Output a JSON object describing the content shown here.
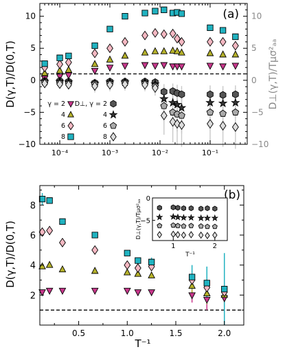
{
  "chart_data": [
    {
      "type": "scatter",
      "panel_label": "(a)",
      "xscale": "log",
      "xlim": [
        4e-05,
        0.55
      ],
      "ylim": [
        -10,
        12
      ],
      "ylabel": "D(γ,T)/D(0,T)",
      "ylabel_right": "D⊥(γ,T)/Tμσ²ₐₐ",
      "x_ticks": [
        0.0001,
        0.001,
        0.01,
        0.1
      ],
      "x_tick_labels": [
        "10⁻⁴",
        "10⁻³",
        "10⁻²",
        "10⁻¹"
      ],
      "y_ticks": [
        -10,
        -5,
        0,
        5,
        10
      ],
      "y_tick_labels": [
        "−10",
        "−5",
        "0",
        "5",
        "10"
      ],
      "reference_line": 1,
      "legend": {
        "gamma_prefix": "γ = ",
        "perp_prefix": "D⊥, γ = ",
        "entries": [
          "2",
          "4",
          "6",
          "8"
        ]
      },
      "series": [
        {
          "gamma": 2,
          "marker": "triangle-down",
          "color": "#c8378c",
          "x": [
            5e-05,
            0.0001,
            0.00015,
            0.0005,
            0.001,
            0.002,
            0.005,
            0.008,
            0.012,
            0.018,
            0.022,
            0.027,
            0.1,
            0.18,
            0.32
          ],
          "y": [
            0.3,
            0.6,
            0.8,
            1.5,
            2.0,
            2.3,
            2.4,
            2.3,
            2.4,
            2.2,
            2.2,
            2.2,
            2.3,
            2.2,
            2.3
          ]
        },
        {
          "gamma": 4,
          "marker": "triangle-up",
          "color": "#b5b12a",
          "x": [
            5e-05,
            0.0001,
            0.00015,
            0.0005,
            0.001,
            0.002,
            0.005,
            0.008,
            0.012,
            0.018,
            0.022,
            0.027,
            0.1,
            0.18,
            0.32
          ],
          "y": [
            1.1,
            1.5,
            1.6,
            2.5,
            3.2,
            3.8,
            4.3,
            4.5,
            4.5,
            4.6,
            4.5,
            4.3,
            4.2,
            4.0,
            4.0
          ]
        },
        {
          "gamma": 6,
          "marker": "diamond",
          "color": "#f4b8c2",
          "x": [
            5e-05,
            0.0001,
            0.00015,
            0.0005,
            0.001,
            0.002,
            0.005,
            0.008,
            0.012,
            0.018,
            0.022,
            0.027,
            0.1,
            0.18,
            0.32
          ],
          "y": [
            2.0,
            2.5,
            2.8,
            4.2,
            5.0,
            6.0,
            7.0,
            7.4,
            7.2,
            7.3,
            6.5,
            6.0,
            6.0,
            6.0,
            5.4
          ]
        },
        {
          "gamma": 8,
          "marker": "square",
          "color": "#20b2c0",
          "x": [
            5e-05,
            0.0001,
            0.00015,
            0.0005,
            0.001,
            0.002,
            0.005,
            0.008,
            0.012,
            0.018,
            0.022,
            0.027,
            0.1,
            0.18,
            0.32
          ],
          "y": [
            2.6,
            3.5,
            3.8,
            5.4,
            8.0,
            10.0,
            10.5,
            10.8,
            11.0,
            10.5,
            10.6,
            10.4,
            8.2,
            7.8,
            6.8
          ]
        },
        {
          "gamma": 2,
          "perp": true,
          "marker": "hexagon",
          "color": "#555555",
          "x": [
            5e-05,
            0.0001,
            0.00015,
            0.0005,
            0.001,
            0.002,
            0.005,
            0.008,
            0.012,
            0.018,
            0.022,
            0.027,
            0.1,
            0.18,
            0.32
          ],
          "y": [
            -0.1,
            -0.1,
            -0.2,
            -0.4,
            -0.2,
            -0.2,
            -0.2,
            -0.3,
            -1.8,
            -1.7,
            -2.0,
            -2.2,
            -2.2,
            -2.3,
            -2.2
          ],
          "err": [
            0.3,
            0.3,
            0.3,
            0.5,
            0.5,
            0.5,
            0.5,
            0.6,
            1.2,
            1.2,
            1.3,
            1.3,
            1.4,
            1.4,
            1.4
          ]
        },
        {
          "gamma": 4,
          "perp": true,
          "marker": "star",
          "color": "#333333",
          "x": [
            5e-05,
            0.0001,
            0.00015,
            0.0005,
            0.001,
            0.002,
            0.005,
            0.008,
            0.012,
            0.018,
            0.022,
            0.027,
            0.1,
            0.18,
            0.32
          ],
          "y": [
            -0.2,
            -0.2,
            -0.3,
            -0.5,
            -0.3,
            -0.3,
            -0.3,
            -0.6,
            -2.9,
            -3.5,
            -3.8,
            -4.3,
            -3.5,
            -3.6,
            -3.5
          ],
          "err": [
            0.4,
            0.4,
            0.4,
            0.6,
            0.6,
            0.6,
            0.6,
            0.8,
            1.8,
            2.0,
            2.1,
            2.2,
            2.0,
            2.1,
            2.1
          ]
        },
        {
          "gamma": 6,
          "perp": true,
          "marker": "pentagon",
          "color": "#aaaaaa",
          "x": [
            5e-05,
            0.0001,
            0.00015,
            0.0005,
            0.001,
            0.002,
            0.005,
            0.008,
            0.012,
            0.018,
            0.022,
            0.027,
            0.1,
            0.18,
            0.32
          ],
          "y": [
            -0.3,
            -0.4,
            -0.5,
            -0.6,
            -0.5,
            -0.4,
            -0.5,
            -0.9,
            -4.0,
            -5.0,
            -5.3,
            -5.5,
            -5.0,
            -5.2,
            -5.0
          ],
          "err": [
            0.5,
            0.5,
            0.5,
            0.8,
            0.8,
            0.8,
            0.8,
            1.0,
            2.4,
            2.6,
            2.7,
            2.8,
            2.6,
            2.7,
            2.7
          ]
        },
        {
          "gamma": 8,
          "perp": true,
          "marker": "diamond",
          "color": "#dddddd",
          "x": [
            5e-05,
            0.0001,
            0.00015,
            0.0005,
            0.001,
            0.002,
            0.005,
            0.008,
            0.012,
            0.018,
            0.022,
            0.027,
            0.1,
            0.18,
            0.32
          ],
          "y": [
            -0.5,
            -0.6,
            -0.7,
            -0.9,
            -0.7,
            -0.6,
            -0.7,
            -1.2,
            -5.5,
            -6.5,
            -6.8,
            -7.0,
            -6.8,
            -7.1,
            -7.3
          ],
          "err": [
            0.6,
            0.6,
            0.6,
            1.0,
            1.0,
            1.0,
            1.0,
            1.2,
            3.0,
            3.2,
            3.3,
            3.4,
            3.2,
            3.3,
            3.4
          ]
        }
      ]
    },
    {
      "type": "scatter",
      "panel_label": "(b)",
      "xlim": [
        0.1,
        2.2
      ],
      "ylim": [
        0,
        9.3
      ],
      "xlabel": "T⁻¹",
      "ylabel": "D(γ,T)/D(0,T)",
      "x_ticks": [
        0.5,
        1.0,
        1.5,
        2.0
      ],
      "x_tick_labels": [
        "0.5",
        "1.0",
        "1.5",
        "2.0"
      ],
      "y_ticks": [
        2,
        4,
        6,
        8
      ],
      "y_tick_labels": [
        "2",
        "4",
        "6",
        "8"
      ],
      "reference_line": 1,
      "series": [
        {
          "gamma": 2,
          "marker": "triangle-down",
          "color": "#c8378c",
          "x": [
            0.125,
            0.2,
            0.333,
            0.667,
            1.0,
            1.11,
            1.25,
            1.667,
            1.82,
            2.0
          ],
          "y": [
            2.2,
            2.3,
            2.3,
            2.3,
            2.3,
            2.2,
            2.2,
            2.0,
            1.7,
            1.8
          ],
          "err": [
            0.05,
            0.05,
            0.05,
            0.05,
            0.05,
            0.08,
            0.1,
            0.5,
            0.7,
            0.6
          ]
        },
        {
          "gamma": 4,
          "marker": "triangle-up",
          "color": "#b5b12a",
          "x": [
            0.125,
            0.2,
            0.333,
            0.667,
            1.0,
            1.11,
            1.25,
            1.667,
            1.82,
            2.0
          ],
          "y": [
            3.9,
            4.0,
            3.7,
            3.6,
            3.5,
            3.4,
            3.3,
            2.6,
            2.1,
            2.0
          ],
          "err": [
            0.05,
            0.05,
            0.05,
            0.05,
            0.1,
            0.1,
            0.15,
            0.5,
            0.7,
            0.7
          ]
        },
        {
          "gamma": 6,
          "marker": "diamond",
          "color": "#f4b8c2",
          "x": [
            0.125,
            0.2,
            0.333,
            0.667,
            1.0,
            1.11,
            1.25,
            1.667,
            1.82,
            2.0
          ],
          "y": [
            6.2,
            6.3,
            5.5,
            5.0,
            4.0,
            3.8,
            3.9,
            3.0,
            2.5,
            2.2
          ],
          "err": [
            0.05,
            0.05,
            0.05,
            0.1,
            0.1,
            0.15,
            0.2,
            0.6,
            0.8,
            0.8
          ]
        },
        {
          "gamma": 8,
          "marker": "square",
          "color": "#20b2c0",
          "x": [
            0.125,
            0.2,
            0.333,
            0.667,
            1.0,
            1.11,
            1.25,
            1.667,
            1.82,
            2.0
          ],
          "y": [
            8.4,
            8.3,
            6.9,
            6.0,
            4.8,
            4.3,
            4.2,
            3.2,
            2.8,
            2.4
          ],
          "err": [
            0.4,
            0.1,
            0.1,
            0.1,
            0.15,
            0.2,
            0.3,
            0.8,
            1.1,
            2.4
          ]
        }
      ],
      "inset": {
        "xlim": [
          0.5,
          2.3
        ],
        "ylim": [
          -9.5,
          0
        ],
        "x_ticks": [
          1,
          2
        ],
        "x_tick_labels": [
          "1",
          "2"
        ],
        "y_ticks": [
          -5,
          0
        ],
        "y_tick_labels": [
          "−5",
          "0"
        ],
        "xlabel": "T⁻¹",
        "ylabel": "D⊥(γ,T)/Tμσ²ₐₐ",
        "x": [
          0.67,
          1.0,
          1.11,
          1.25,
          1.43,
          1.667,
          1.82,
          2.0
        ],
        "series": [
          {
            "gamma": 2,
            "marker": "hexagon",
            "color": "#555555",
            "y": [
              -2.2,
              -2.1,
              -2.2,
              -2.3,
              -2.3,
              -2.4,
              -2.3,
              -2.4
            ]
          },
          {
            "gamma": 4,
            "marker": "star",
            "color": "#333333",
            "y": [
              -4.3,
              -4.2,
              -4.3,
              -4.4,
              -4.4,
              -4.5,
              -4.5,
              -4.5
            ]
          },
          {
            "gamma": 6,
            "marker": "pentagon",
            "color": "#aaaaaa",
            "y": [
              -6.2,
              -6.1,
              -6.2,
              -6.3,
              -6.2,
              -6.3,
              -6.4,
              -6.4
            ]
          },
          {
            "gamma": 8,
            "marker": "diamond",
            "color": "#dddddd",
            "y": [
              -8.2,
              -8.1,
              -8.2,
              -8.3,
              -8.2,
              -8.3,
              -8.4,
              -8.3
            ]
          }
        ]
      }
    }
  ]
}
